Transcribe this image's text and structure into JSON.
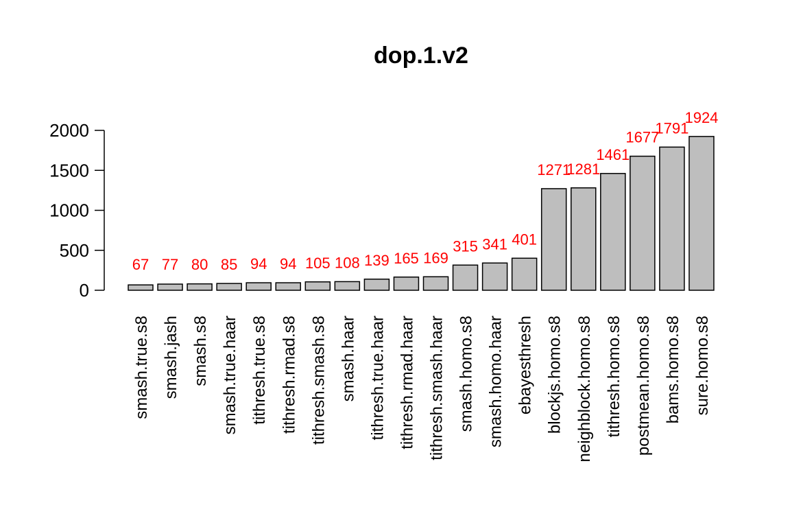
{
  "chart_data": {
    "type": "bar",
    "title": "dop.1.v2",
    "xlabel": "",
    "ylabel": "",
    "ylim": [
      0,
      2000
    ],
    "yticks": [
      0,
      500,
      1000,
      1500,
      2000
    ],
    "categories": [
      "smash.true.s8",
      "smash.jash",
      "smash.s8",
      "smash.true.haar",
      "tithresh.true.s8",
      "tithresh.rmad.s8",
      "tithresh.smash.s8",
      "smash.haar",
      "tithresh.true.haar",
      "tithresh.rmad.haar",
      "tithresh.smash.haar",
      "smash.homo.s8",
      "smash.homo.haar",
      "ebayesthresh",
      "blockjs.homo.s8",
      "neighblock.homo.s8",
      "tithresh.homo.s8",
      "postmean.homo.s8",
      "bams.homo.s8",
      "sure.homo.s8"
    ],
    "values": [
      67,
      77,
      80,
      85,
      94,
      94,
      105,
      108,
      139,
      165,
      169,
      315,
      341,
      401,
      1271,
      1281,
      1461,
      1677,
      1791,
      1924
    ],
    "data_labels": [
      "67",
      "77",
      "80",
      "85",
      "94",
      "94",
      "105",
      "108",
      "139",
      "165",
      "169",
      "315",
      "341",
      "401",
      "1271",
      "1281",
      "1461",
      "1677",
      "1791",
      "1924"
    ],
    "grid": false,
    "legend": "none"
  },
  "colors": {
    "bar_fill": "#bebebe",
    "bar_stroke": "#000000",
    "data_label": "#ff0000",
    "axis": "#000000"
  }
}
